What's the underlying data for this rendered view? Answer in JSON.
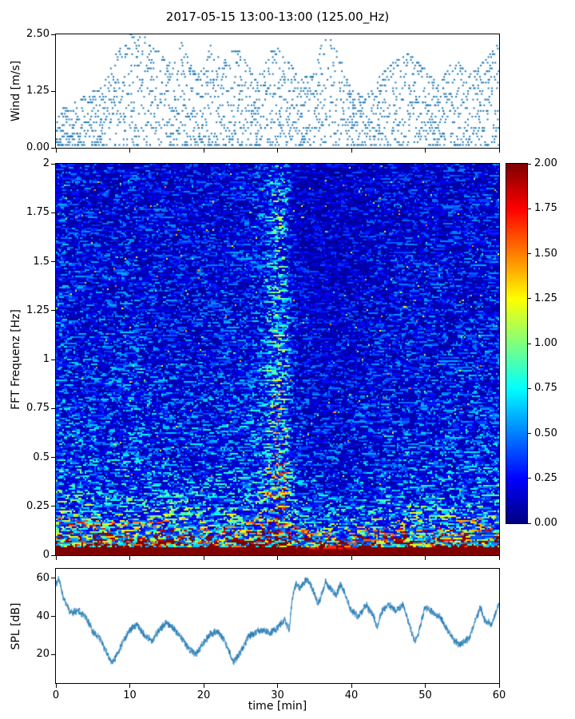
{
  "figure": {
    "title": "2017-05-15 13:00-13:00 (125.00_Hz)",
    "accent_color": "#1f77b4",
    "background": "#ffffff"
  },
  "chart_data": [
    {
      "type": "scatter",
      "ylabel": "Wind [m/s]",
      "xlim": [
        0,
        60
      ],
      "ylim": [
        0,
        2.5
      ],
      "yticks": [
        {
          "v": 0.0,
          "label": "0.00"
        },
        {
          "v": 1.25,
          "label": "1.25"
        },
        {
          "v": 2.5,
          "label": "2.50"
        }
      ],
      "marker_color": "#1f77b4",
      "quantize_step": 0.0625,
      "columns": 520,
      "envelope": [
        [
          0,
          0.8
        ],
        [
          1,
          0.85
        ],
        [
          2,
          0.95
        ],
        [
          3,
          1.0
        ],
        [
          4,
          1.15
        ],
        [
          5,
          1.25
        ],
        [
          6,
          1.3
        ],
        [
          7,
          1.6
        ],
        [
          8,
          2.0
        ],
        [
          9,
          2.3
        ],
        [
          10,
          2.5
        ],
        [
          11,
          2.4
        ],
        [
          12,
          2.45
        ],
        [
          13,
          2.2
        ],
        [
          14,
          2.1
        ],
        [
          15,
          1.9
        ],
        [
          16,
          1.8
        ],
        [
          17,
          2.3
        ],
        [
          18,
          1.9
        ],
        [
          19,
          1.6
        ],
        [
          20,
          1.75
        ],
        [
          21,
          2.3
        ],
        [
          22,
          2.0
        ],
        [
          23,
          1.9
        ],
        [
          24,
          2.15
        ],
        [
          25,
          2.1
        ],
        [
          26,
          1.8
        ],
        [
          27,
          1.5
        ],
        [
          28,
          1.7
        ],
        [
          29,
          2.1
        ],
        [
          30,
          2.2
        ],
        [
          31,
          1.9
        ],
        [
          32,
          1.8
        ],
        [
          33,
          1.5
        ],
        [
          34,
          1.55
        ],
        [
          35,
          1.6
        ],
        [
          36,
          2.3
        ],
        [
          37,
          2.4
        ],
        [
          38,
          2.25
        ],
        [
          39,
          1.7
        ],
        [
          40,
          1.3
        ],
        [
          41,
          1.2
        ],
        [
          42,
          1.1
        ],
        [
          43,
          1.3
        ],
        [
          44,
          1.6
        ],
        [
          45,
          1.75
        ],
        [
          46,
          1.9
        ],
        [
          47,
          2.0
        ],
        [
          48,
          2.15
        ],
        [
          49,
          1.9
        ],
        [
          50,
          1.7
        ],
        [
          51,
          1.5
        ],
        [
          52,
          1.4
        ],
        [
          53,
          1.7
        ],
        [
          54,
          1.95
        ],
        [
          55,
          1.8
        ],
        [
          56,
          1.6
        ],
        [
          57,
          1.75
        ],
        [
          58,
          1.9
        ],
        [
          59,
          2.1
        ],
        [
          60,
          2.5
        ]
      ],
      "seed": 42
    },
    {
      "type": "heatmap",
      "ylabel": "FFT Frequenz [Hz]",
      "xlim": [
        0,
        60
      ],
      "ylim": [
        0,
        2
      ],
      "yticks": [
        {
          "v": 0,
          "label": "0"
        },
        {
          "v": 0.25,
          "label": "0.25"
        },
        {
          "v": 0.5,
          "label": "0.5"
        },
        {
          "v": 0.75,
          "label": "0.75"
        },
        {
          "v": 1,
          "label": "1"
        },
        {
          "v": 1.25,
          "label": "1.25"
        },
        {
          "v": 1.5,
          "label": "1.5"
        },
        {
          "v": 1.75,
          "label": "1.75"
        },
        {
          "v": 2,
          "label": "2"
        }
      ],
      "colormap": "jet",
      "clim": [
        0,
        2
      ],
      "colorbar_ticks": [
        {
          "v": 0.0,
          "label": "0.00"
        },
        {
          "v": 0.25,
          "label": "0.25"
        },
        {
          "v": 0.5,
          "label": "0.50"
        },
        {
          "v": 0.75,
          "label": "0.75"
        },
        {
          "v": 1.0,
          "label": "1.00"
        },
        {
          "v": 1.25,
          "label": "1.25"
        },
        {
          "v": 1.5,
          "label": "1.50"
        },
        {
          "v": 1.75,
          "label": "1.75"
        },
        {
          "v": 2.0,
          "label": "2.00"
        }
      ],
      "bins": {
        "time": 278,
        "freq": 245
      },
      "freq_profile": [
        [
          0,
          3.5
        ],
        [
          0.02,
          3.0
        ],
        [
          0.05,
          1.8
        ],
        [
          0.1,
          1.0
        ],
        [
          0.15,
          0.65
        ],
        [
          0.2,
          0.5
        ],
        [
          0.3,
          0.38
        ],
        [
          0.5,
          0.3
        ],
        [
          0.8,
          0.26
        ],
        [
          1.2,
          0.23
        ],
        [
          1.6,
          0.21
        ],
        [
          2,
          0.2
        ]
      ],
      "hf_envelope": [
        [
          0,
          1.25
        ],
        [
          3,
          1.1
        ],
        [
          6,
          1.05
        ],
        [
          10,
          1.1
        ],
        [
          14,
          1.05
        ],
        [
          18,
          1.0
        ],
        [
          22,
          1.05
        ],
        [
          26,
          1.1
        ],
        [
          28,
          1.3
        ],
        [
          29,
          1.8
        ],
        [
          30,
          2.5
        ],
        [
          31,
          2.2
        ],
        [
          31.5,
          1.6
        ],
        [
          32,
          1.1
        ],
        [
          33,
          0.85
        ],
        [
          36,
          0.8
        ],
        [
          40,
          0.82
        ],
        [
          44,
          0.95
        ],
        [
          48,
          1.0
        ],
        [
          52,
          1.0
        ],
        [
          56,
          1.05
        ],
        [
          60,
          1.1
        ]
      ],
      "lf_envelope": [
        [
          0,
          1.25
        ],
        [
          4,
          1.3
        ],
        [
          8,
          1.25
        ],
        [
          12,
          1.2
        ],
        [
          16,
          1.1
        ],
        [
          20,
          1.0
        ],
        [
          24,
          0.95
        ],
        [
          28,
          1.05
        ],
        [
          30,
          1.15
        ],
        [
          32,
          0.95
        ],
        [
          34,
          0.85
        ],
        [
          38,
          0.85
        ],
        [
          42,
          0.95
        ],
        [
          46,
          1.05
        ],
        [
          50,
          1.1
        ],
        [
          54,
          1.15
        ],
        [
          58,
          1.2
        ],
        [
          60,
          1.25
        ]
      ],
      "lf_blend_freq": 0.3,
      "seed": 7
    },
    {
      "type": "line",
      "ylabel": "SPL [dB]",
      "xlabel": "time [min]",
      "xlim": [
        0,
        60
      ],
      "ylim": [
        5,
        65
      ],
      "yticks": [
        {
          "v": 20,
          "label": "20"
        },
        {
          "v": 40,
          "label": "40"
        },
        {
          "v": 60,
          "label": "60"
        }
      ],
      "xticks": [
        {
          "v": 0,
          "label": "0"
        },
        {
          "v": 10,
          "label": "10"
        },
        {
          "v": 20,
          "label": "20"
        },
        {
          "v": 30,
          "label": "30"
        },
        {
          "v": 40,
          "label": "40"
        },
        {
          "v": 50,
          "label": "50"
        },
        {
          "v": 60,
          "label": "60"
        }
      ],
      "line_color": "#1f77b4",
      "noise_amp": 2.4,
      "keyframes": [
        [
          0,
          57
        ],
        [
          0.4,
          60
        ],
        [
          1,
          50
        ],
        [
          2,
          42
        ],
        [
          3,
          43
        ],
        [
          4,
          40
        ],
        [
          5,
          32
        ],
        [
          6,
          28
        ],
        [
          7,
          20
        ],
        [
          7.5,
          16
        ],
        [
          8,
          18
        ],
        [
          9,
          26
        ],
        [
          10,
          33
        ],
        [
          11,
          36
        ],
        [
          12,
          30
        ],
        [
          13,
          27
        ],
        [
          14,
          33
        ],
        [
          15,
          37
        ],
        [
          16,
          33
        ],
        [
          17,
          29
        ],
        [
          18,
          23
        ],
        [
          19,
          20
        ],
        [
          20,
          26
        ],
        [
          21,
          31
        ],
        [
          22,
          32
        ],
        [
          23,
          26
        ],
        [
          24,
          16
        ],
        [
          25,
          21
        ],
        [
          26,
          29
        ],
        [
          27,
          32
        ],
        [
          28,
          33
        ],
        [
          29,
          31
        ],
        [
          30,
          34
        ],
        [
          31,
          38
        ],
        [
          31.6,
          33
        ],
        [
          32,
          50
        ],
        [
          32.5,
          57
        ],
        [
          33,
          55
        ],
        [
          34,
          60
        ],
        [
          35,
          52
        ],
        [
          35.5,
          46
        ],
        [
          36,
          52
        ],
        [
          36.5,
          58
        ],
        [
          37,
          55
        ],
        [
          38,
          51
        ],
        [
          38.5,
          57
        ],
        [
          39,
          53
        ],
        [
          40,
          43
        ],
        [
          41,
          40
        ],
        [
          42,
          46
        ],
        [
          43,
          40
        ],
        [
          43.5,
          34
        ],
        [
          44,
          42
        ],
        [
          45,
          46
        ],
        [
          46,
          43
        ],
        [
          47,
          46
        ],
        [
          48,
          34
        ],
        [
          48.5,
          27
        ],
        [
          49,
          30
        ],
        [
          50,
          45
        ],
        [
          51,
          42
        ],
        [
          52,
          40
        ],
        [
          53,
          33
        ],
        [
          54,
          27
        ],
        [
          54.5,
          25
        ],
        [
          55,
          26
        ],
        [
          56,
          29
        ],
        [
          57,
          40
        ],
        [
          57.5,
          45
        ],
        [
          58,
          38
        ],
        [
          59,
          36
        ],
        [
          60,
          47
        ]
      ],
      "seed": 11
    }
  ]
}
